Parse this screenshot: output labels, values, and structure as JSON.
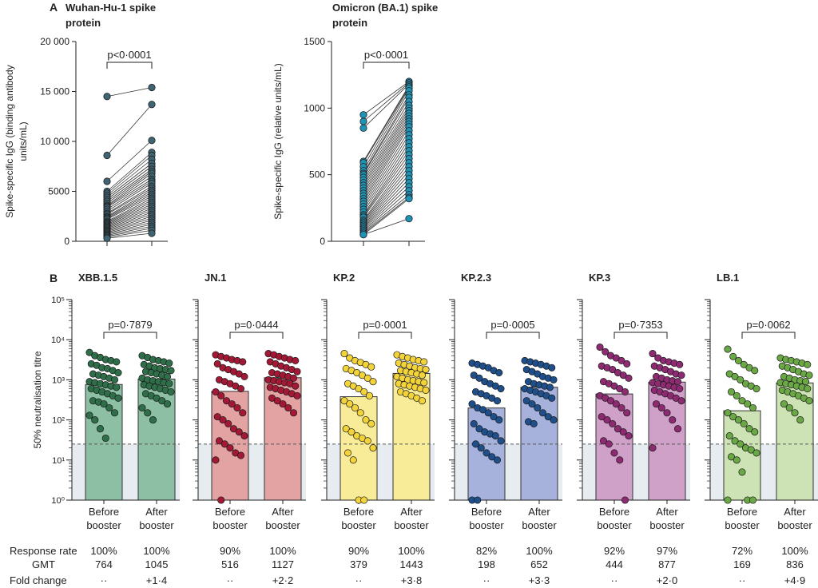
{
  "panel_a_letter": "A",
  "panel_b_letter": "B",
  "row_labels": {
    "response_rate": "Response rate",
    "gmt": "GMT",
    "fold_change": "Fold change"
  },
  "colors": {
    "panelA_fill": "#3f6473",
    "panelA_alt_fill": "#1f93b5",
    "reference_band": "#e7ecf0",
    "XBB.1.5": [
      "#2e6e48",
      "#8cbfa4"
    ],
    "JN.1": [
      "#a31835",
      "#e3a3a2"
    ],
    "KP.2": [
      "#f2d33a",
      "#f9ec99"
    ],
    "KP.2.3": [
      "#1e4f8a",
      "#a6b2dc"
    ],
    "KP.3": [
      "#8e2a72",
      "#cfa0c8"
    ],
    "LB.1": [
      "#6aa845",
      "#cde3b5"
    ]
  },
  "chart_data": [
    {
      "type": "scatter",
      "variant": "paired",
      "title": "Wuhan-Hu-1 spike protein",
      "ylabel": "Spike-specific IgG (binding antibody units/mL)",
      "ylim": [
        0,
        20000
      ],
      "yticks": [
        0,
        5000,
        10000,
        15000,
        20000
      ],
      "ytick_labels": [
        "0",
        "5000",
        "10 000",
        "15 000",
        "20 000"
      ],
      "p_value": "p<0·0001",
      "pairs": [
        [
          14500,
          15400
        ],
        [
          8600,
          13700
        ],
        [
          6000,
          10100
        ],
        [
          5000,
          8900
        ],
        [
          4800,
          8600
        ],
        [
          4600,
          8200
        ],
        [
          4400,
          7800
        ],
        [
          4200,
          7500
        ],
        [
          4000,
          7200
        ],
        [
          3800,
          7000
        ],
        [
          3600,
          6800
        ],
        [
          3500,
          6500
        ],
        [
          3400,
          6200
        ],
        [
          3200,
          6000
        ],
        [
          3000,
          5800
        ],
        [
          2800,
          5500
        ],
        [
          2700,
          5300
        ],
        [
          2500,
          5100
        ],
        [
          2400,
          4900
        ],
        [
          2300,
          4700
        ],
        [
          2200,
          4500
        ],
        [
          2000,
          4300
        ],
        [
          1900,
          4100
        ],
        [
          1800,
          3900
        ],
        [
          1700,
          3700
        ],
        [
          1600,
          3500
        ],
        [
          1500,
          3300
        ],
        [
          1400,
          3100
        ],
        [
          1300,
          2900
        ],
        [
          1200,
          2700
        ],
        [
          1100,
          2500
        ],
        [
          1000,
          2300
        ],
        [
          900,
          2100
        ],
        [
          800,
          1900
        ],
        [
          700,
          1700
        ],
        [
          600,
          1500
        ],
        [
          500,
          1300
        ],
        [
          400,
          1100
        ],
        [
          300,
          800
        ]
      ]
    },
    {
      "type": "scatter",
      "variant": "paired",
      "title": "Omicron (BA.1) spike protein",
      "ylabel": "Spike-specific IgG (relative units/mL)",
      "ylim": [
        0,
        1500
      ],
      "yticks": [
        0,
        500,
        1000,
        1500
      ],
      "ytick_labels": [
        "0",
        "500",
        "1000",
        "1500"
      ],
      "p_value": "p<0·0001",
      "pairs": [
        [
          950,
          1200
        ],
        [
          900,
          1190
        ],
        [
          850,
          1180
        ],
        [
          600,
          1170
        ],
        [
          590,
          1160
        ],
        [
          560,
          1150
        ],
        [
          530,
          1130
        ],
        [
          510,
          1100
        ],
        [
          500,
          1080
        ],
        [
          480,
          1050
        ],
        [
          460,
          1020
        ],
        [
          440,
          1000
        ],
        [
          420,
          980
        ],
        [
          400,
          960
        ],
        [
          380,
          940
        ],
        [
          360,
          920
        ],
        [
          340,
          900
        ],
        [
          320,
          880
        ],
        [
          300,
          860
        ],
        [
          280,
          830
        ],
        [
          260,
          800
        ],
        [
          240,
          770
        ],
        [
          220,
          740
        ],
        [
          200,
          710
        ],
        [
          190,
          680
        ],
        [
          180,
          650
        ],
        [
          160,
          620
        ],
        [
          150,
          590
        ],
        [
          140,
          560
        ],
        [
          130,
          530
        ],
        [
          120,
          500
        ],
        [
          110,
          470
        ],
        [
          100,
          440
        ],
        [
          90,
          410
        ],
        [
          80,
          380
        ],
        [
          70,
          350
        ],
        [
          60,
          330
        ],
        [
          50,
          320
        ],
        [
          50,
          170
        ]
      ]
    },
    {
      "type": "bar",
      "variant": "bar-with-points",
      "ylabel": "50% neutralisation titre",
      "yscale": "log",
      "ylim": [
        1,
        100000
      ],
      "ytick_labels": [
        "10⁰",
        "10¹",
        "10²",
        "10³",
        "10⁴",
        "10⁵"
      ],
      "reference_line": 25,
      "categories": [
        "Before booster",
        "After booster"
      ],
      "variants": [
        {
          "name": "XBB.1.5",
          "p_value": "p=0·7879",
          "gmt": [
            764,
            1045
          ],
          "gmt_labels": [
            "764",
            "1045"
          ],
          "response_rate": [
            "100%",
            "100%"
          ],
          "fold_change": [
            "··",
            "+1·4"
          ],
          "points": [
            [
              4800,
              4000,
              3600,
              3200,
              3000,
              2800,
              2500,
              2300,
              2000,
              1900,
              1700,
              1500,
              1400,
              1300,
              1200,
              1100,
              1000,
              900,
              850,
              800,
              750,
              700,
              650,
              600,
              550,
              500,
              450,
              400,
              350,
              300,
              280,
              250,
              200,
              150,
              130,
              100,
              60,
              35
            ],
            [
              4000,
              3600,
              3200,
              3000,
              2800,
              2600,
              2400,
              2200,
              2000,
              1900,
              1800,
              1700,
              1600,
              1500,
              1400,
              1300,
              1200,
              1100,
              1000,
              950,
              900,
              850,
              800,
              750,
              700,
              650,
              600,
              550,
              500,
              450,
              400,
              350,
              300,
              250,
              200,
              150,
              100
            ]
          ]
        },
        {
          "name": "JN.1",
          "p_value": "p=0·0444",
          "gmt": [
            516,
            1127
          ],
          "gmt_labels": [
            "516",
            "1127"
          ],
          "response_rate": [
            "90%",
            "100%"
          ],
          "fold_change": [
            "··",
            "+2·2"
          ],
          "points": [
            [
              4200,
              3800,
              3500,
              3200,
              3000,
              2800,
              2500,
              2000,
              1800,
              1600,
              1400,
              1200,
              1000,
              900,
              800,
              700,
              600,
              500,
              400,
              300,
              250,
              200,
              150,
              120,
              100,
              80,
              60,
              50,
              40,
              30,
              25,
              20,
              15,
              13,
              10,
              1
            ],
            [
              4500,
              4200,
              3800,
              3500,
              3200,
              3000,
              2800,
              2500,
              2200,
              2000,
              1800,
              1600,
              1500,
              1400,
              1300,
              1200,
              1100,
              1000,
              950,
              900,
              850,
              800,
              700,
              650,
              600,
              550,
              500,
              450,
              400,
              350,
              300,
              250,
              200,
              150
            ]
          ]
        },
        {
          "name": "KP.2",
          "p_value": "p=0·0001",
          "gmt": [
            379,
            1443
          ],
          "gmt_labels": [
            "379",
            "1443"
          ],
          "response_rate": [
            "90%",
            "100%"
          ],
          "fold_change": [
            "··",
            "+3·8"
          ],
          "points": [
            [
              4500,
              3500,
              3000,
              2700,
              2400,
              2100,
              1900,
              1700,
              1500,
              1300,
              1100,
              900,
              800,
              700,
              600,
              500,
              400,
              300,
              250,
              200,
              150,
              100,
              80,
              60,
              50,
              40,
              35,
              30,
              20,
              15,
              10,
              1,
              1
            ],
            [
              4200,
              3800,
              3500,
              3200,
              3000,
              2800,
              2600,
              2400,
              2200,
              2000,
              1900,
              1800,
              1700,
              1600,
              1500,
              1400,
              1300,
              1200,
              1100,
              1000,
              950,
              900,
              850,
              800,
              750,
              700,
              650,
              600,
              550,
              500,
              450,
              400,
              350,
              300
            ]
          ]
        },
        {
          "name": "KP.2.3",
          "p_value": "p=0·0005",
          "gmt": [
            198,
            652
          ],
          "gmt_labels": [
            "198",
            "652"
          ],
          "response_rate": [
            "82%",
            "100%"
          ],
          "fold_change": [
            "··",
            "+3·3"
          ],
          "points": [
            [
              2600,
              2400,
              2200,
              2000,
              1700,
              1500,
              1300,
              1100,
              900,
              800,
              700,
              600,
              500,
              450,
              400,
              350,
              300,
              250,
              200,
              180,
              150,
              120,
              100,
              80,
              60,
              50,
              45,
              40,
              30,
              25,
              20,
              15,
              12,
              10,
              1,
              1
            ],
            [
              3000,
              2800,
              2600,
              2400,
              2200,
              2000,
              1800,
              1600,
              1400,
              1200,
              1100,
              1000,
              900,
              800,
              750,
              700,
              650,
              600,
              550,
              500,
              450,
              400,
              350,
              300,
              250,
              200,
              150,
              120,
              100,
              90,
              80
            ]
          ]
        },
        {
          "name": "KP.3",
          "p_value": "p=0·7353",
          "gmt": [
            444,
            877
          ],
          "gmt_labels": [
            "444",
            "877"
          ],
          "response_rate": [
            "92%",
            "97%"
          ],
          "fold_change": [
            "··",
            "+2·0"
          ],
          "points": [
            [
              6500,
              5000,
              4000,
              3500,
              3000,
              2500,
              2200,
              2000,
              1800,
              1500,
              1300,
              1100,
              900,
              800,
              700,
              600,
              500,
              400,
              350,
              300,
              250,
              200,
              150,
              120,
              100,
              80,
              60,
              50,
              40,
              30,
              25,
              15,
              10,
              1
            ],
            [
              4500,
              3500,
              3000,
              2800,
              2600,
              2400,
              2200,
              2000,
              1800,
              1600,
              1400,
              1300,
              1200,
              1100,
              1000,
              950,
              900,
              850,
              800,
              750,
              700,
              650,
              600,
              550,
              500,
              450,
              400,
              350,
              300,
              250,
              200,
              150,
              100,
              60,
              20
            ]
          ]
        },
        {
          "name": "LB.1",
          "p_value": "p=0·0062",
          "gmt": [
            169,
            836
          ],
          "gmt_labels": [
            "169",
            "836"
          ],
          "response_rate": [
            "72%",
            "100%"
          ],
          "fold_change": [
            "··",
            "+4·9"
          ],
          "points": [
            [
              5800,
              3800,
              3000,
              2400,
              2000,
              1700,
              1400,
              1200,
              1000,
              800,
              700,
              600,
              500,
              400,
              300,
              250,
              200,
              150,
              120,
              100,
              80,
              60,
              50,
              40,
              30,
              25,
              20,
              18,
              15,
              12,
              10,
              5,
              1,
              1,
              1
            ],
            [
              3500,
              3200,
              3000,
              2800,
              2600,
              2400,
              2200,
              2000,
              1800,
              1600,
              1400,
              1300,
              1200,
              1100,
              1000,
              950,
              900,
              850,
              800,
              750,
              700,
              650,
              600,
              550,
              500,
              450,
              400,
              350,
              300,
              250,
              200,
              150,
              100
            ]
          ]
        }
      ]
    }
  ]
}
